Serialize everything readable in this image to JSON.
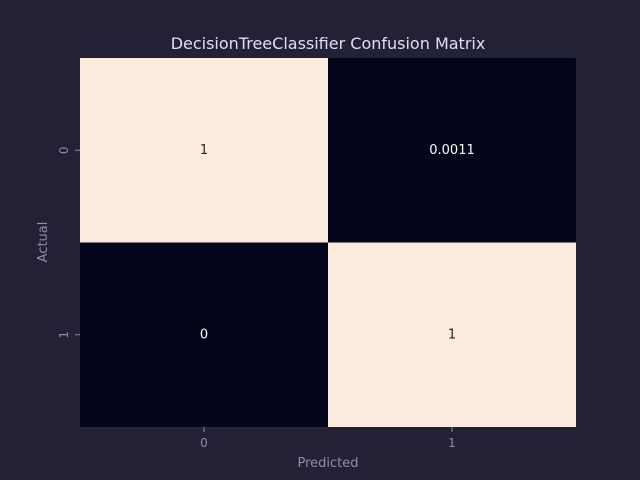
{
  "chart_data": {
    "type": "heatmap",
    "title": "DecisionTreeClassifier Confusion Matrix",
    "xlabel": "Predicted",
    "ylabel": "Actual",
    "x_categories": [
      "0",
      "1"
    ],
    "y_categories": [
      "0",
      "1"
    ],
    "values": [
      [
        1,
        0.0011
      ],
      [
        0,
        1
      ]
    ],
    "value_labels": [
      [
        "1",
        "0.0011"
      ],
      [
        "0",
        "1"
      ]
    ],
    "color_range": [
      0,
      1
    ],
    "colors": {
      "low": "#03051a",
      "high": "#faebdd",
      "label_on_light": "#262626",
      "label_on_dark": "#ffffff"
    },
    "grid": false,
    "colorbar": false
  }
}
